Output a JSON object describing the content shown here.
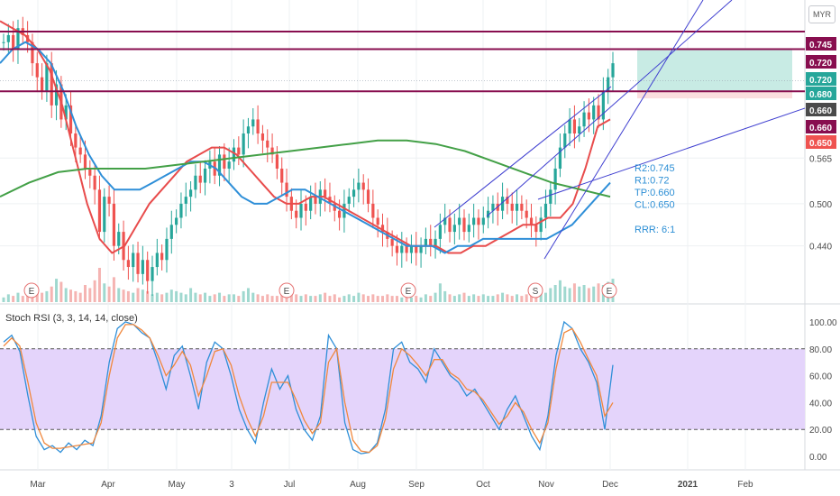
{
  "currency": "MYR",
  "indicator_title": "Stoch RSI (3, 3, 14, 14, close)",
  "notes": [
    "R2:0.745",
    "R1:0.72",
    "TP:0.660",
    "CL:0.650",
    "RRR: 6:1"
  ],
  "colors": {
    "up": "#26a69a",
    "down": "#ef5350",
    "resistance": "#880e4f",
    "trend": "#3f3fd0",
    "ma_red": "#e84c4c",
    "ma_blue": "#2f8fd8",
    "ma_green": "#43a047",
    "stoch_k": "#2f8fd8",
    "stoch_d": "#f0883e",
    "rsi_band": "#e4d4fb",
    "target_zone": "#c8ebe4",
    "stop_zone": "#fbdede"
  },
  "chart_data": [
    {
      "type": "candlestick",
      "title": "",
      "x_ticks": [
        "Mar",
        "Apr",
        "May",
        "3",
        "Jul",
        "Aug",
        "Sep",
        "Oct",
        "Nov",
        "Dec",
        "2021",
        "Feb"
      ],
      "y_ticks": [
        0.44,
        0.5,
        0.565
      ],
      "ylim": [
        0.36,
        0.79
      ],
      "price_tags": [
        {
          "label": "0.745",
          "value": 0.745,
          "color": "#880e4f"
        },
        {
          "label": "0.720",
          "value": 0.72,
          "color": "#880e4f"
        },
        {
          "label": "0.720",
          "value": 0.72,
          "color": "#26a69a"
        },
        {
          "label": "0.680",
          "value": 0.68,
          "color": "#26a69a"
        },
        {
          "label": "0.660",
          "value": 0.66,
          "color": "#4a4a4a"
        },
        {
          "label": "0.660",
          "value": 0.66,
          "color": "#880e4f"
        },
        {
          "label": "0.650",
          "value": 0.65,
          "color": "#ef5350"
        }
      ],
      "horizontal_levels": [
        0.745,
        0.72,
        0.66
      ],
      "close_series": [
        0.73,
        0.74,
        0.72,
        0.75,
        0.74,
        0.73,
        0.7,
        0.68,
        0.66,
        0.7,
        0.64,
        0.67,
        0.62,
        0.64,
        0.6,
        0.58,
        0.57,
        0.55,
        0.54,
        0.52,
        0.46,
        0.51,
        0.5,
        0.44,
        0.46,
        0.42,
        0.41,
        0.43,
        0.4,
        0.42,
        0.39,
        0.41,
        0.43,
        0.42,
        0.45,
        0.47,
        0.48,
        0.5,
        0.51,
        0.52,
        0.54,
        0.53,
        0.55,
        0.56,
        0.54,
        0.57,
        0.55,
        0.56,
        0.58,
        0.57,
        0.6,
        0.61,
        0.62,
        0.6,
        0.59,
        0.58,
        0.57,
        0.55,
        0.53,
        0.51,
        0.49,
        0.48,
        0.5,
        0.49,
        0.51,
        0.5,
        0.52,
        0.51,
        0.5,
        0.49,
        0.48,
        0.5,
        0.51,
        0.52,
        0.53,
        0.52,
        0.5,
        0.48,
        0.47,
        0.46,
        0.45,
        0.44,
        0.43,
        0.44,
        0.43,
        0.44,
        0.43,
        0.44,
        0.45,
        0.44,
        0.45,
        0.47,
        0.48,
        0.46,
        0.47,
        0.48,
        0.46,
        0.47,
        0.48,
        0.47,
        0.48,
        0.49,
        0.5,
        0.49,
        0.51,
        0.5,
        0.49,
        0.5,
        0.49,
        0.48,
        0.47,
        0.46,
        0.48,
        0.5,
        0.52,
        0.55,
        0.58,
        0.6,
        0.62,
        0.6,
        0.61,
        0.63,
        0.62,
        0.64,
        0.62,
        0.66,
        0.68,
        0.7
      ],
      "volume": [
        3,
        5,
        4,
        6,
        4,
        8,
        12,
        9,
        6,
        7,
        10,
        15,
        13,
        9,
        8,
        7,
        6,
        11,
        9,
        14,
        22,
        12,
        10,
        16,
        9,
        8,
        7,
        6,
        9,
        8,
        7,
        5,
        6,
        5,
        6,
        8,
        7,
        6,
        5,
        9,
        6,
        5,
        6,
        4,
        5,
        6,
        4,
        5,
        5,
        4,
        7,
        9,
        6,
        5,
        4,
        5,
        4,
        4,
        6,
        5,
        7,
        5,
        4,
        5,
        4,
        4,
        5,
        6,
        4,
        5,
        3,
        4,
        5,
        4,
        6,
        5,
        4,
        5,
        4,
        4,
        5,
        4,
        4,
        3,
        4,
        3,
        4,
        3,
        5,
        4,
        6,
        12,
        7,
        5,
        4,
        5,
        6,
        4,
        5,
        4,
        5,
        4,
        4,
        5,
        6,
        5,
        4,
        5,
        4,
        5,
        6,
        7,
        8,
        6,
        9,
        11,
        14,
        10,
        9,
        12,
        10,
        11,
        9,
        10,
        12,
        11,
        13,
        15
      ],
      "moving_averages": [
        {
          "name": "MA red",
          "color": "#e84c4c",
          "values": [
            0.76,
            0.75,
            0.74,
            0.72,
            0.69,
            0.64,
            0.57,
            0.5,
            0.45,
            0.43,
            0.44,
            0.47,
            0.5,
            0.52,
            0.54,
            0.56,
            0.57,
            0.58,
            0.58,
            0.57,
            0.55,
            0.53,
            0.51,
            0.5,
            0.5,
            0.51,
            0.51,
            0.5,
            0.49,
            0.48,
            0.47,
            0.46,
            0.45,
            0.44,
            0.44,
            0.44,
            0.43,
            0.43,
            0.44,
            0.44,
            0.45,
            0.46,
            0.47,
            0.47,
            0.48,
            0.48,
            0.5,
            0.55,
            0.61,
            0.62
          ]
        },
        {
          "name": "MA blue",
          "color": "#2f8fd8",
          "values": [
            0.7,
            0.72,
            0.73,
            0.72,
            0.7,
            0.66,
            0.61,
            0.57,
            0.54,
            0.52,
            0.52,
            0.52,
            0.53,
            0.54,
            0.55,
            0.56,
            0.56,
            0.55,
            0.53,
            0.51,
            0.5,
            0.5,
            0.51,
            0.52,
            0.52,
            0.51,
            0.5,
            0.49,
            0.48,
            0.47,
            0.46,
            0.45,
            0.44,
            0.44,
            0.44,
            0.43,
            0.44,
            0.44,
            0.45,
            0.45,
            0.45,
            0.45,
            0.45,
            0.45,
            0.46,
            0.47,
            0.49,
            0.51,
            0.53
          ]
        },
        {
          "name": "MA green",
          "color": "#43a047",
          "values": [
            0.51,
            0.53,
            0.545,
            0.55,
            0.55,
            0.55,
            0.555,
            0.56,
            0.565,
            0.57,
            0.575,
            0.58,
            0.585,
            0.59,
            0.59,
            0.585,
            0.575,
            0.56,
            0.545,
            0.53,
            0.52,
            0.51
          ]
        }
      ]
    },
    {
      "type": "line",
      "title": "Stoch RSI (3, 3, 14, 14, close)",
      "y_ticks": [
        0,
        20,
        40,
        60,
        80,
        100
      ],
      "y_tick_labels": [
        "0.00",
        "20.00",
        "40.00",
        "60.00",
        "80.00",
        "100.00"
      ],
      "ylim": [
        -8,
        108
      ],
      "band": [
        20,
        80
      ],
      "series": [
        {
          "name": "K",
          "color": "#2f8fd8",
          "values": [
            85,
            90,
            78,
            45,
            15,
            5,
            8,
            3,
            10,
            5,
            12,
            8,
            30,
            70,
            95,
            100,
            98,
            92,
            88,
            70,
            50,
            75,
            82,
            60,
            35,
            70,
            85,
            80,
            60,
            35,
            20,
            10,
            40,
            65,
            50,
            60,
            35,
            20,
            12,
            30,
            90,
            80,
            25,
            5,
            2,
            3,
            10,
            35,
            80,
            85,
            70,
            65,
            55,
            80,
            70,
            60,
            55,
            45,
            50,
            40,
            30,
            20,
            35,
            45,
            30,
            15,
            5,
            30,
            75,
            100,
            95,
            80,
            70,
            55,
            20,
            68
          ]
        },
        {
          "name": "D",
          "color": "#f0883e",
          "values": [
            82,
            88,
            82,
            55,
            25,
            10,
            6,
            6,
            7,
            8,
            9,
            10,
            25,
            60,
            88,
            98,
            98,
            94,
            88,
            75,
            60,
            68,
            78,
            68,
            45,
            60,
            78,
            80,
            68,
            45,
            28,
            15,
            30,
            55,
            55,
            55,
            42,
            27,
            17,
            25,
            70,
            80,
            40,
            12,
            4,
            3,
            8,
            28,
            65,
            80,
            75,
            68,
            60,
            72,
            72,
            62,
            58,
            50,
            48,
            42,
            33,
            24,
            30,
            40,
            33,
            20,
            10,
            25,
            65,
            92,
            95,
            85,
            72,
            60,
            30,
            40
          ]
        }
      ]
    }
  ]
}
